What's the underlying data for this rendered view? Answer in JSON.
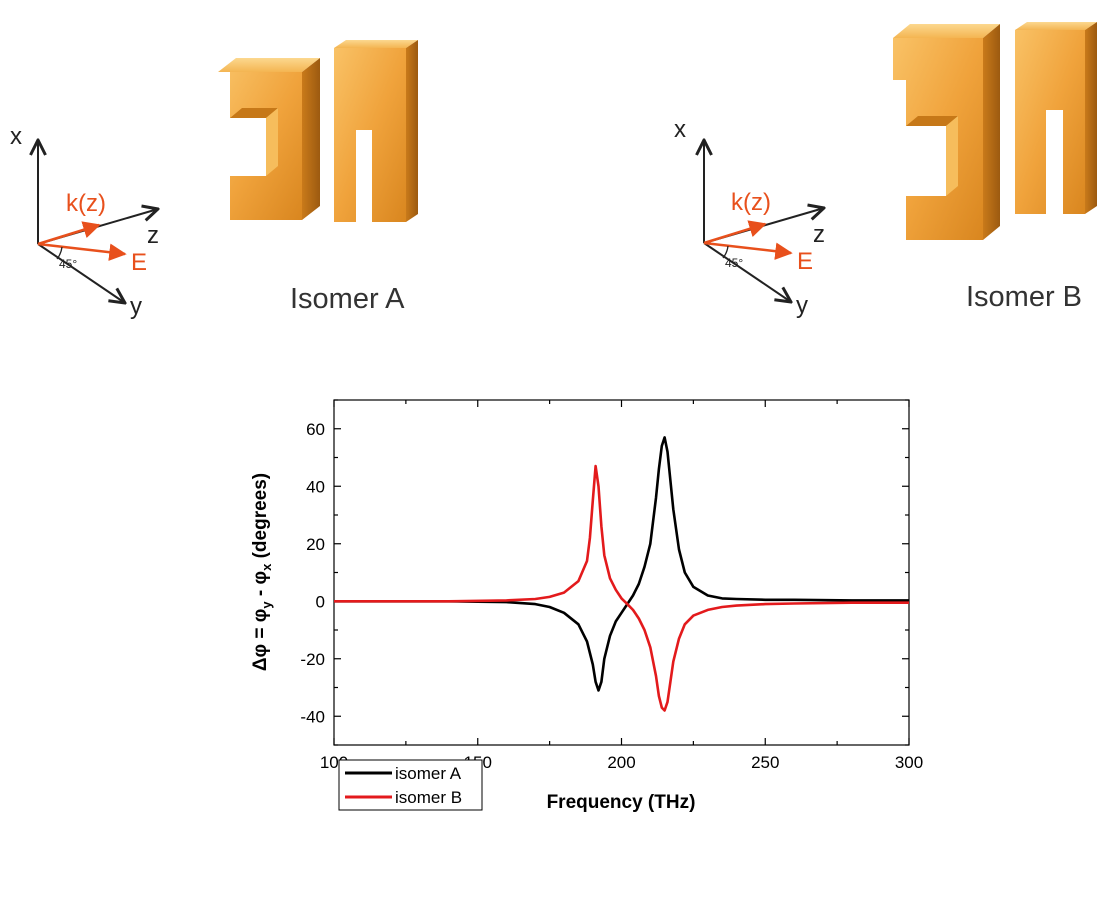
{
  "diagrams": [
    {
      "axis_labels": {
        "x": "x",
        "y": "y",
        "z": "z"
      },
      "k_label": "k(z)",
      "e_label": "E",
      "angle_label": "45°",
      "caption": "Isomer A",
      "shape": "gold-double-split-ring"
    },
    {
      "axis_labels": {
        "x": "x",
        "y": "y",
        "z": "z"
      },
      "k_label": "k(z)",
      "e_label": "E",
      "angle_label": "45°",
      "caption": "Isomer B",
      "shape": "gold-double-split-ring"
    }
  ],
  "colors": {
    "accent_orange": "#e8501c",
    "gold_light": "#f8b24a",
    "gold_dark": "#b86a12",
    "series_a": "#000000",
    "series_b": "#e31a1c"
  },
  "chart_data": {
    "type": "line",
    "xlabel": "Frequency (THz)",
    "ylabel_parts": {
      "main": "Δφ = φ",
      "sub_y": "y",
      "mid": " - φ",
      "sub_x": "x",
      "tail": " (degrees)"
    },
    "xlim": [
      100,
      300
    ],
    "ylim": [
      -50,
      70
    ],
    "xticks": [
      100,
      150,
      200,
      250,
      300
    ],
    "yticks": [
      -40,
      -20,
      0,
      20,
      40,
      60
    ],
    "legend_position": "bottom-left",
    "grid": false,
    "series": [
      {
        "name": "isomer A",
        "color": "#000000",
        "x": [
          100,
          140,
          160,
          170,
          175,
          180,
          185,
          188,
          190,
          191,
          192,
          193,
          194,
          196,
          198,
          200,
          202,
          204,
          206,
          208,
          210,
          212,
          213,
          214,
          215,
          216,
          217,
          218,
          220,
          222,
          225,
          230,
          235,
          240,
          250,
          260,
          280,
          300
        ],
        "y": [
          0,
          0,
          -0.3,
          -1,
          -2,
          -4,
          -8,
          -14,
          -22,
          -28,
          -31,
          -28,
          -20,
          -12,
          -7,
          -4,
          -1,
          2,
          6,
          12,
          20,
          36,
          46,
          54,
          57,
          52,
          42,
          32,
          18,
          10,
          5,
          2,
          1,
          0.8,
          0.5,
          0.5,
          0.3,
          0.3
        ]
      },
      {
        "name": "isomer B",
        "color": "#e31a1c",
        "x": [
          100,
          140,
          160,
          170,
          175,
          180,
          185,
          188,
          189,
          190,
          191,
          192,
          193,
          194,
          196,
          198,
          200,
          202,
          204,
          206,
          208,
          210,
          212,
          213,
          214,
          215,
          216,
          217,
          218,
          220,
          222,
          225,
          230,
          235,
          240,
          250,
          260,
          280,
          300
        ],
        "y": [
          0,
          0,
          0.3,
          0.8,
          1.5,
          3,
          7,
          14,
          22,
          35,
          47,
          40,
          26,
          16,
          8,
          4,
          1,
          -1,
          -3,
          -6,
          -10,
          -16,
          -26,
          -33,
          -37,
          -38,
          -35,
          -28,
          -21,
          -13,
          -8,
          -5,
          -3,
          -2,
          -1.5,
          -1,
          -0.8,
          -0.5,
          -0.5
        ]
      }
    ]
  }
}
